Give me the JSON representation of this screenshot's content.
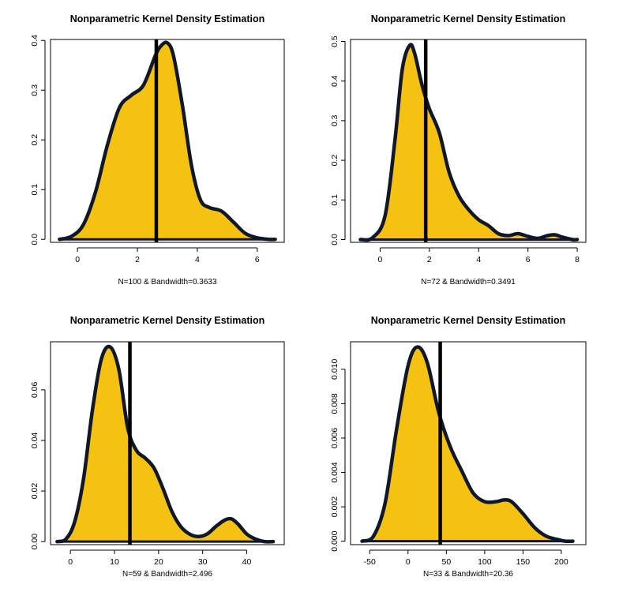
{
  "chart_data": [
    {
      "type": "area",
      "title": "Nonparametric Kernel Density Estimation",
      "xlabel": "N=100 & Bandwidth=0.3633",
      "ylabel": "",
      "xlim": [
        -0.9,
        6.9
      ],
      "ylim": [
        -0.006,
        0.402
      ],
      "xticks": [
        0,
        2,
        4,
        6
      ],
      "yticks": [
        0.0,
        0.1,
        0.2,
        0.3,
        0.4
      ],
      "ytick_labels": [
        "0.0",
        "0.1",
        "0.2",
        "0.3",
        "0.4"
      ],
      "vline": 2.63,
      "fill_color": "#F5C211",
      "line_color": "#101828",
      "x": [
        -0.6,
        -0.2,
        0.2,
        0.6,
        1.0,
        1.4,
        1.8,
        2.2,
        2.6,
        2.8,
        3.0,
        3.2,
        3.5,
        3.8,
        4.1,
        4.4,
        4.8,
        5.2,
        5.6,
        6.0,
        6.4,
        6.6
      ],
      "values": [
        0.0,
        0.006,
        0.03,
        0.095,
        0.19,
        0.265,
        0.29,
        0.31,
        0.37,
        0.39,
        0.395,
        0.37,
        0.27,
        0.15,
        0.08,
        0.064,
        0.057,
        0.035,
        0.012,
        0.003,
        0.0,
        0.0
      ]
    },
    {
      "type": "area",
      "title": "Nonparametric Kernel Density Estimation",
      "xlabel": "N=72 & Bandwidth=0.3491",
      "ylabel": "",
      "xlim": [
        -1.2,
        8.35
      ],
      "ylim": [
        -0.007,
        0.505
      ],
      "xticks": [
        0,
        2,
        4,
        6,
        8
      ],
      "yticks": [
        0.0,
        0.1,
        0.2,
        0.3,
        0.4,
        0.5
      ],
      "ytick_labels": [
        "0.0",
        "0.1",
        "0.2",
        "0.3",
        "0.4",
        "0.5"
      ],
      "vline": 1.85,
      "fill_color": "#F5C211",
      "line_color": "#101828",
      "x": [
        -0.8,
        -0.3,
        0.2,
        0.6,
        0.9,
        1.2,
        1.4,
        1.7,
        2.0,
        2.4,
        2.8,
        3.2,
        3.6,
        4.0,
        4.4,
        4.8,
        5.2,
        5.6,
        6.0,
        6.4,
        6.8,
        7.1,
        7.4,
        7.8,
        8.0
      ],
      "values": [
        0.0,
        0.005,
        0.06,
        0.25,
        0.43,
        0.49,
        0.47,
        0.39,
        0.33,
        0.27,
        0.17,
        0.11,
        0.075,
        0.05,
        0.035,
        0.015,
        0.01,
        0.015,
        0.008,
        0.003,
        0.01,
        0.012,
        0.006,
        0.0,
        0.0
      ]
    },
    {
      "type": "area",
      "title": "Nonparametric Kernel Density Estimation",
      "xlabel": "N=59 & Bandwidth=2.496",
      "ylabel": "",
      "xlim": [
        -4.5,
        48.5
      ],
      "ylim": [
        -0.0012,
        0.079
      ],
      "xticks": [
        0,
        10,
        20,
        30,
        40
      ],
      "yticks": [
        0.0,
        0.02,
        0.04,
        0.06
      ],
      "ytick_labels": [
        "0.00",
        "0.02",
        "0.04",
        "0.06"
      ],
      "vline": 13.5,
      "fill_color": "#F5C211",
      "line_color": "#101828",
      "x": [
        -3.0,
        -1.0,
        1.0,
        3.0,
        5.0,
        7.0,
        9.0,
        11.0,
        13.0,
        15.0,
        17.0,
        19.0,
        21.0,
        23.0,
        25.0,
        27.0,
        29.0,
        31.0,
        33.0,
        35.0,
        36.5,
        38.0,
        40.0,
        42.0,
        44.0,
        46.0
      ],
      "values": [
        0.0,
        0.001,
        0.008,
        0.025,
        0.052,
        0.072,
        0.077,
        0.068,
        0.045,
        0.036,
        0.033,
        0.029,
        0.021,
        0.012,
        0.006,
        0.003,
        0.002,
        0.003,
        0.006,
        0.0085,
        0.009,
        0.007,
        0.003,
        0.001,
        0.0,
        0.0
      ]
    },
    {
      "type": "area",
      "title": "Nonparametric Kernel Density Estimation",
      "xlabel": "N=33 & Bandwidth=20.36",
      "ylabel": "",
      "xlim": [
        -75,
        232
      ],
      "ylim": [
        -0.0002,
        0.0116
      ],
      "xticks": [
        -50,
        0,
        50,
        100,
        150,
        200
      ],
      "yticks": [
        0.0,
        0.002,
        0.004,
        0.006,
        0.008,
        0.01
      ],
      "ytick_labels": [
        "0.000",
        "0.002",
        "0.004",
        "0.006",
        "0.008",
        "0.010"
      ],
      "vline": 42,
      "fill_color": "#F5C211",
      "line_color": "#101828",
      "x": [
        -60,
        -45,
        -30,
        -15,
        0,
        12,
        25,
        40,
        55,
        70,
        85,
        100,
        115,
        125,
        135,
        150,
        165,
        180,
        195,
        205,
        215
      ],
      "values": [
        0.0,
        0.0003,
        0.0022,
        0.0065,
        0.0102,
        0.0113,
        0.0104,
        0.0075,
        0.0055,
        0.0041,
        0.0028,
        0.0023,
        0.0023,
        0.0024,
        0.0023,
        0.0016,
        0.0008,
        0.0003,
        0.0001,
        0.0,
        0.0
      ]
    }
  ]
}
